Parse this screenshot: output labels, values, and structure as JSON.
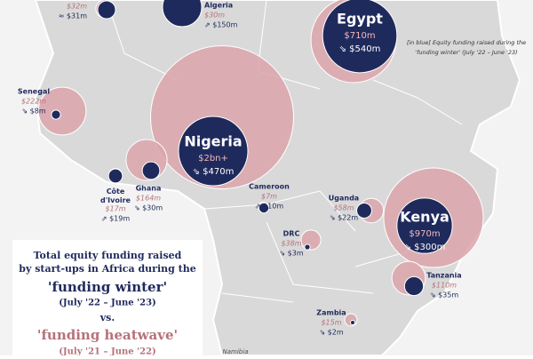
{
  "annotation": [
    "[in blue] Equity funding raised during the",
    "'funding winter' (July '22 – June '23)"
  ],
  "title_box": {
    "lines": [
      "Total equity funding raised",
      "by start-ups in Africa during the",
      "'funding winter'",
      "(July '22 – June '23)",
      "vs.",
      "'funding heatwave'",
      "(July '21 – June '22)"
    ]
  },
  "countries": [
    {
      "heatwave": 32,
      "heatwave_label": "$32m",
      "winter": 31,
      "winter_label": "≈ $31m"
    },
    {
      "name": "Algeria",
      "heatwave": 30,
      "heatwave_label": "$30m",
      "winter": 150,
      "winter_label": "⇗ $150m"
    },
    {
      "name": "Egypt",
      "heatwave": 710,
      "heatwave_label": "$710m",
      "winter": 540,
      "winter_label": "⇘ $540m"
    },
    {
      "name": "Senegal",
      "heatwave": 222,
      "heatwave_label": "$222m",
      "winter": 8,
      "winter_label": "⇘ $8m"
    },
    {
      "name": "Nigeria",
      "heatwave": 2000,
      "heatwave_label": "$2bn+",
      "winter": 470,
      "winter_label": "⇘ $470m"
    },
    {
      "name": "Côte d'Ivoire",
      "heatwave": 17,
      "heatwave_label": "$17m",
      "winter": 19,
      "winter_label": "⇗ $19m"
    },
    {
      "name": "Ghana",
      "heatwave": 164,
      "heatwave_label": "$164m",
      "winter": 30,
      "winter_label": "⇘ $30m"
    },
    {
      "name": "Cameroon",
      "heatwave": 7,
      "heatwave_label": "$7m",
      "winter": 10,
      "winter_label": "⇗ $10m"
    },
    {
      "name": "Uganda",
      "heatwave": 58,
      "heatwave_label": "$58m",
      "winter": 22,
      "winter_label": "⇘ $22m"
    },
    {
      "name": "Kenya",
      "heatwave": 970,
      "heatwave_label": "$970m",
      "winter": 300,
      "winter_label": "⇘ $300m"
    },
    {
      "name": "DRC",
      "heatwave": 38,
      "heatwave_label": "$38m",
      "winter": 3,
      "winter_label": "⇘ $3m"
    },
    {
      "name": "Tanzania",
      "heatwave": 110,
      "heatwave_label": "$110m",
      "winter": 35,
      "winter_label": "⇘ $35m"
    },
    {
      "name": "Zambia",
      "heatwave": 15,
      "heatwave_label": "$15m",
      "winter": 2,
      "winter_label": "⇘ $2m"
    }
  ],
  "map_labels": [
    "Namibia"
  ]
}
